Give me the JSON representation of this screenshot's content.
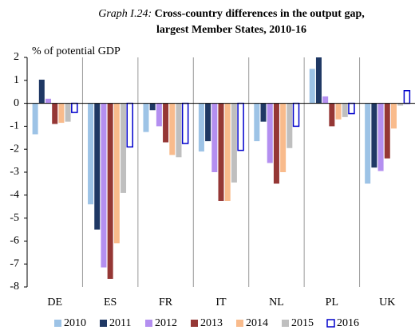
{
  "chart_data": {
    "type": "bar",
    "title_label": "Graph I.24:",
    "title": [
      "Cross-country differences in the output gap,",
      "largest Member States, 2010-16"
    ],
    "y_axis_label": "% of potential GDP",
    "categories": [
      "DE",
      "ES",
      "FR",
      "IT",
      "NL",
      "PL",
      "UK"
    ],
    "series": [
      {
        "name": "2010",
        "color": "#9dc3e6",
        "values": [
          -1.35,
          -4.4,
          -1.25,
          -2.1,
          -1.65,
          1.5,
          -3.5
        ]
      },
      {
        "name": "2011",
        "color": "#1f3864",
        "values": [
          1.03,
          -5.5,
          -0.3,
          -1.65,
          -0.8,
          2.0,
          -2.8
        ]
      },
      {
        "name": "2012",
        "color": "#b48ff0",
        "values": [
          0.2,
          -7.15,
          -1.0,
          -3.0,
          -2.6,
          0.3,
          -2.95
        ]
      },
      {
        "name": "2013",
        "color": "#953735",
        "values": [
          -0.9,
          -7.65,
          -1.7,
          -4.25,
          -3.5,
          -1.0,
          -2.4
        ]
      },
      {
        "name": "2014",
        "color": "#f9bb8c",
        "values": [
          -0.85,
          -6.1,
          -2.25,
          -4.25,
          -3.0,
          -0.7,
          -1.1
        ]
      },
      {
        "name": "2015",
        "color": "#bfbfbf",
        "values": [
          -0.8,
          -3.9,
          -2.35,
          -3.45,
          -1.95,
          -0.6,
          -0.1
        ]
      },
      {
        "name": "2016",
        "color": "#0000cc",
        "hollow": true,
        "values": [
          -0.4,
          -1.9,
          -1.75,
          -2.05,
          -1.0,
          -0.45,
          0.55
        ]
      }
    ],
    "ylim": [
      -8,
      2
    ],
    "yticks": [
      -8,
      -7,
      -6,
      -5,
      -4,
      -3,
      -2,
      -1,
      0,
      1,
      2
    ]
  }
}
